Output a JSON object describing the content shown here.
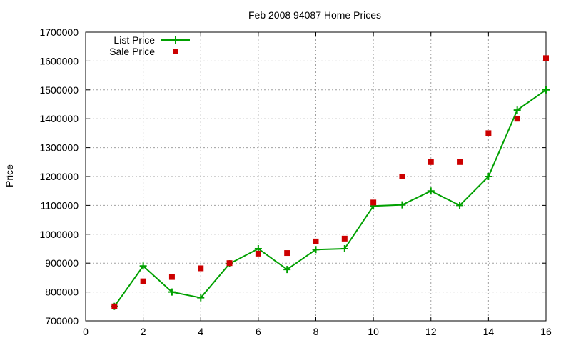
{
  "chart_data": {
    "type": "line",
    "title": "Feb 2008 94087 Home Prices",
    "xlabel": "",
    "ylabel": "Price",
    "xlim": [
      0,
      16
    ],
    "ylim": [
      700000,
      1700000
    ],
    "xticks": [
      0,
      2,
      4,
      6,
      8,
      10,
      12,
      14,
      16
    ],
    "yticks": [
      700000,
      800000,
      900000,
      1000000,
      1100000,
      1200000,
      1300000,
      1400000,
      1500000,
      1600000,
      1700000
    ],
    "grid": true,
    "legend_position": "top-left",
    "series": [
      {
        "name": "List Price",
        "style": "line-plus",
        "color": "#00a000",
        "x": [
          1,
          2,
          3,
          4,
          5,
          6,
          7,
          8,
          9,
          10,
          11,
          12,
          13,
          14,
          15,
          16
        ],
        "y": [
          750000,
          890000,
          800000,
          780000,
          898000,
          950000,
          878000,
          947000,
          950000,
          1098000,
          1102000,
          1150000,
          1100000,
          1200000,
          1430000,
          1500000
        ]
      },
      {
        "name": "Sale Price",
        "style": "square",
        "color": "#cc0000",
        "x": [
          1,
          2,
          3,
          4,
          5,
          6,
          7,
          8,
          9,
          10,
          11,
          12,
          13,
          14,
          15,
          16
        ],
        "y": [
          750000,
          837000,
          852000,
          882000,
          900000,
          933000,
          935000,
          975000,
          985000,
          1110000,
          1200000,
          1250000,
          1250000,
          1350000,
          1400000,
          1610000
        ]
      }
    ]
  }
}
